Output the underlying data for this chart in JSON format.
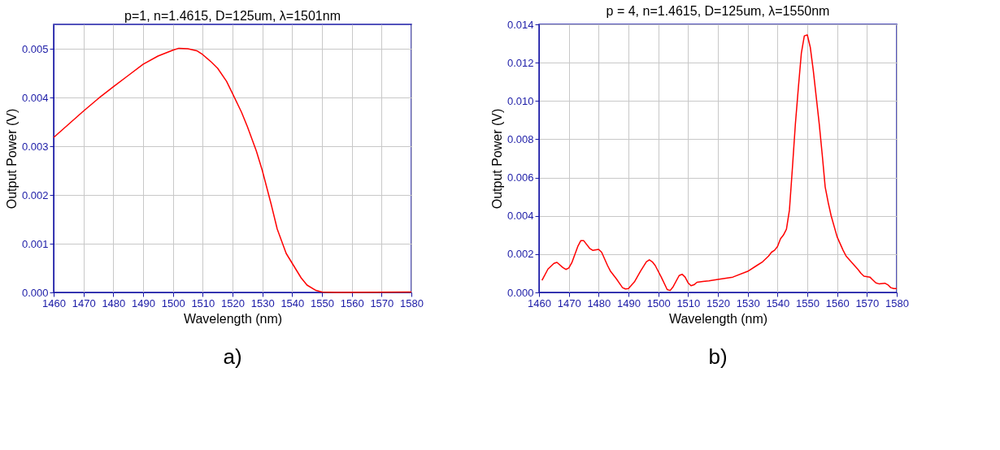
{
  "chart_data": [
    {
      "type": "line",
      "title": "p=1, n=1.4615, D=125um, λ=1501nm",
      "xlabel": "Wavelength (nm)",
      "ylabel": "Output Power (V)",
      "annotations": [
        "a)"
      ],
      "xlim": [
        1460,
        1580
      ],
      "xticks": [
        1460,
        1470,
        1480,
        1490,
        1500,
        1510,
        1520,
        1530,
        1540,
        1550,
        1560,
        1570,
        1580
      ],
      "ylim": [
        0,
        0.0055
      ],
      "yticks": [
        {
          "value": 0,
          "label": "0.000"
        },
        {
          "value": 0.001,
          "label": "0.001"
        },
        {
          "value": 0.002,
          "label": "0.002"
        },
        {
          "value": 0.003,
          "label": "0.003"
        },
        {
          "value": 0.004,
          "label": "0.004"
        },
        {
          "value": 0.005,
          "label": "0.005"
        }
      ],
      "grid": true,
      "legend": false,
      "marker": "none",
      "line_style": "solid",
      "series": [
        {
          "color": "#ff0000",
          "x": [
            1460,
            1465,
            1470,
            1475,
            1480,
            1485,
            1490,
            1495,
            1500,
            1502,
            1505,
            1508,
            1510,
            1513,
            1515,
            1518,
            1520,
            1523,
            1525,
            1528,
            1530,
            1533,
            1535,
            1538,
            1540,
            1543,
            1545,
            1548,
            1550,
            1555,
            1580
          ],
          "values": [
            0.00318,
            0.00345,
            0.00372,
            0.00398,
            0.00422,
            0.00445,
            0.00468,
            0.00485,
            0.00497,
            0.00501,
            0.005,
            0.00496,
            0.00488,
            0.00472,
            0.0046,
            0.00433,
            0.00408,
            0.0037,
            0.0034,
            0.0029,
            0.0025,
            0.0018,
            0.0013,
            0.0008,
            0.0006,
            0.0003,
            0.00015,
            4e-05,
            1e-05,
            0,
            1e-05
          ]
        }
      ]
    },
    {
      "type": "line",
      "title": "p = 4, n=1.4615, D=125um, λ=1550nm",
      "xlabel": "Wavelength (nm)",
      "ylabel": "Output Power (V)",
      "annotations": [
        "b)"
      ],
      "xlim": [
        1460,
        1580
      ],
      "xticks": [
        1460,
        1470,
        1480,
        1490,
        1500,
        1510,
        1520,
        1530,
        1540,
        1550,
        1560,
        1570,
        1580
      ],
      "ylim": [
        0,
        0.014
      ],
      "yticks": [
        {
          "value": 0,
          "label": "0.000"
        },
        {
          "value": 0.002,
          "label": "0.002"
        },
        {
          "value": 0.004,
          "label": "0.004"
        },
        {
          "value": 0.006,
          "label": "0.006"
        },
        {
          "value": 0.008,
          "label": "0.008"
        },
        {
          "value": 0.01,
          "label": "0.010"
        },
        {
          "value": 0.012,
          "label": "0.012"
        },
        {
          "value": 0.014,
          "label": "0.014"
        }
      ],
      "grid": true,
      "legend": false,
      "marker": "none",
      "line_style": "solid",
      "series": [
        {
          "color": "#ff0000",
          "x": [
            1461,
            1463,
            1465,
            1466,
            1468,
            1469,
            1470,
            1471,
            1473,
            1474,
            1475,
            1477,
            1478,
            1480,
            1481,
            1483,
            1484,
            1486,
            1488,
            1489,
            1490,
            1492,
            1494,
            1496,
            1497,
            1498,
            1499,
            1501,
            1503,
            1504,
            1505,
            1507,
            1508,
            1509,
            1510,
            1511,
            1512,
            1513,
            1515,
            1517,
            1520,
            1525,
            1530,
            1533,
            1535,
            1537,
            1538,
            1539,
            1540,
            1541,
            1542,
            1543,
            1544,
            1545,
            1546,
            1547,
            1548,
            1549,
            1550,
            1551,
            1552,
            1553,
            1554,
            1555,
            1556,
            1557,
            1558,
            1560,
            1562,
            1563,
            1565,
            1567,
            1568,
            1569,
            1571,
            1572,
            1573,
            1574,
            1576,
            1577,
            1578,
            1579,
            1580
          ],
          "values": [
            0.00063,
            0.00122,
            0.00152,
            0.00157,
            0.0013,
            0.0012,
            0.00128,
            0.00155,
            0.0024,
            0.0027,
            0.0027,
            0.0023,
            0.0022,
            0.00225,
            0.0021,
            0.0014,
            0.0011,
            0.0007,
            0.00025,
            0.00018,
            0.0002,
            0.00055,
            0.0011,
            0.0016,
            0.0017,
            0.0016,
            0.0014,
            0.0008,
            0.00015,
            0.0001,
            0.0003,
            0.00088,
            0.00095,
            0.0008,
            0.0005,
            0.00035,
            0.0004,
            0.00053,
            0.00057,
            0.0006,
            0.00068,
            0.0008,
            0.0011,
            0.0014,
            0.0016,
            0.0019,
            0.0021,
            0.0022,
            0.0024,
            0.0028,
            0.003,
            0.0033,
            0.0043,
            0.0065,
            0.0088,
            0.0107,
            0.0125,
            0.0134,
            0.01345,
            0.0128,
            0.0116,
            0.0102,
            0.0088,
            0.0072,
            0.0055,
            0.0047,
            0.004,
            0.0029,
            0.0022,
            0.0019,
            0.00155,
            0.0012,
            0.001,
            0.00085,
            0.0008,
            0.00065,
            0.0005,
            0.00045,
            0.00048,
            0.0004,
            0.00025,
            0.0002,
            0.0002
          ]
        }
      ]
    }
  ]
}
